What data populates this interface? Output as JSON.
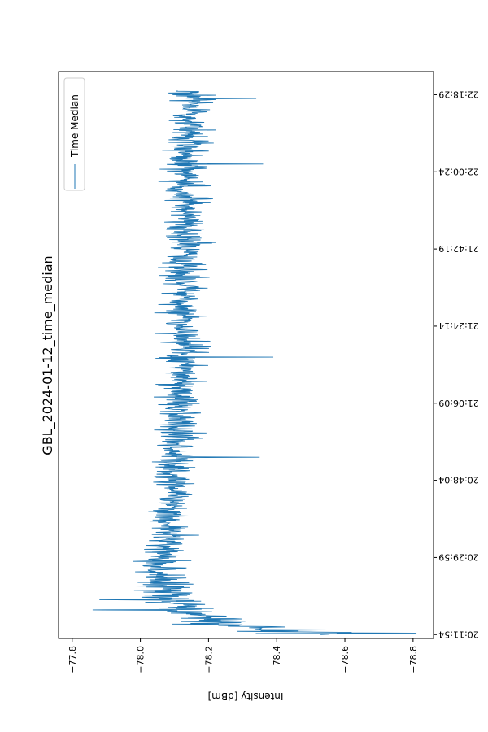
{
  "chart_data": {
    "type": "line",
    "title": "GBL_2024-01-12_time_median",
    "ylabel": "Intensity [dBm]",
    "xlabel": "",
    "orientation": "rotated-90",
    "series": [
      {
        "name": "Time Median",
        "color": "#1f77b4"
      }
    ],
    "legend": {
      "entries": [
        "Time Median"
      ],
      "placement": "top-left"
    },
    "intensity_ticks": [
      -77.8,
      -78.0,
      -78.2,
      -78.4,
      -78.6,
      -78.8
    ],
    "intensity_tick_labels": [
      "−77.8",
      "−78.0",
      "−78.2",
      "−78.4",
      "−78.6",
      "−78.8"
    ],
    "intensity_lim": [
      -77.76,
      -78.86
    ],
    "time_ticks": [
      0,
      1,
      2,
      3,
      4,
      5,
      6,
      7
    ],
    "time_tick_labels": [
      "20:11:54",
      "20:29:59",
      "20:48:04",
      "21:06:09",
      "21:24:14",
      "21:42:19",
      "22:00:24",
      "22:18:29"
    ],
    "time_lim": [
      -0.05,
      7.3
    ],
    "time_range": [
      0,
      7.05
    ],
    "profile": {
      "comment": "median trend of intensity over time index (tick units), plus typical noise amplitude",
      "t": [
        0.0,
        0.05,
        0.12,
        0.22,
        0.35,
        0.55,
        0.8,
        1.1,
        1.5,
        2.0,
        2.5,
        3.0,
        4.0,
        5.0,
        6.0,
        7.05
      ],
      "median": [
        -78.5,
        -78.4,
        -78.3,
        -78.2,
        -78.12,
        -78.08,
        -78.06,
        -78.07,
        -78.08,
        -78.1,
        -78.11,
        -78.12,
        -78.13,
        -78.13,
        -78.14,
        -78.15
      ],
      "noise": [
        0.14,
        0.13,
        0.11,
        0.09,
        0.08,
        0.07,
        0.06,
        0.05,
        0.05,
        0.05,
        0.05,
        0.05,
        0.05,
        0.05,
        0.05,
        0.05
      ],
      "peaks": [
        {
          "t": 0.02,
          "value": -78.81
        },
        {
          "t": 0.03,
          "value": -78.62
        },
        {
          "t": 0.06,
          "value": -78.55
        },
        {
          "t": 0.45,
          "value": -77.88
        },
        {
          "t": 0.32,
          "value": -77.86
        },
        {
          "t": 2.3,
          "value": -78.35
        },
        {
          "t": 3.6,
          "value": -78.39
        },
        {
          "t": 6.1,
          "value": -78.36
        },
        {
          "t": 6.95,
          "value": -78.34
        }
      ]
    }
  }
}
